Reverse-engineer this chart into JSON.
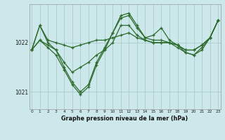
{
  "background_color": "#cce8ea",
  "grid_color": "#aacccc",
  "line_color": "#2d6a2d",
  "marker_color": "#2d6a2d",
  "xlabel": "Graphe pression niveau de la mer (hPa)",
  "hours": [
    0,
    1,
    2,
    3,
    4,
    5,
    6,
    7,
    8,
    9,
    10,
    11,
    12,
    13,
    14,
    15,
    16,
    17,
    18,
    19,
    20,
    21,
    22,
    23
  ],
  "line1": [
    1021.85,
    1022.35,
    1022.05,
    1022.0,
    1021.95,
    1021.9,
    1021.95,
    1022.0,
    1022.05,
    1022.05,
    1022.1,
    1022.15,
    1022.2,
    1022.1,
    1022.05,
    1022.0,
    1022.0,
    1022.0,
    1021.95,
    1021.85,
    1021.85,
    1021.95,
    1022.1,
    1022.45
  ],
  "line2": [
    1021.85,
    1022.05,
    1021.95,
    1021.85,
    1021.6,
    1021.4,
    1021.5,
    1021.6,
    1021.75,
    1021.85,
    1022.0,
    1022.35,
    1022.35,
    1022.15,
    1022.05,
    1022.0,
    1022.0,
    1022.0,
    1021.95,
    1021.85,
    1021.85,
    1021.95,
    1022.1,
    1022.45
  ],
  "line3": [
    1021.85,
    1022.35,
    1022.0,
    1021.85,
    1021.5,
    1021.2,
    1021.0,
    1021.15,
    1021.6,
    1021.9,
    1022.2,
    1022.55,
    1022.6,
    1022.35,
    1022.1,
    1022.15,
    1022.3,
    1022.05,
    1021.95,
    1021.8,
    1021.75,
    1021.9,
    1022.1,
    1022.45
  ],
  "line4": [
    1021.85,
    1022.05,
    1021.9,
    1021.75,
    1021.45,
    1021.15,
    1020.95,
    1021.1,
    1021.55,
    1021.85,
    1022.2,
    1022.5,
    1022.55,
    1022.3,
    1022.1,
    1022.05,
    1022.05,
    1022.0,
    1021.9,
    1021.8,
    1021.75,
    1021.85,
    1022.1,
    1022.45
  ],
  "yticks": [
    1021.0,
    1022.0
  ],
  "ylim": [
    1020.65,
    1022.78
  ],
  "xlim": [
    -0.3,
    23.3
  ]
}
